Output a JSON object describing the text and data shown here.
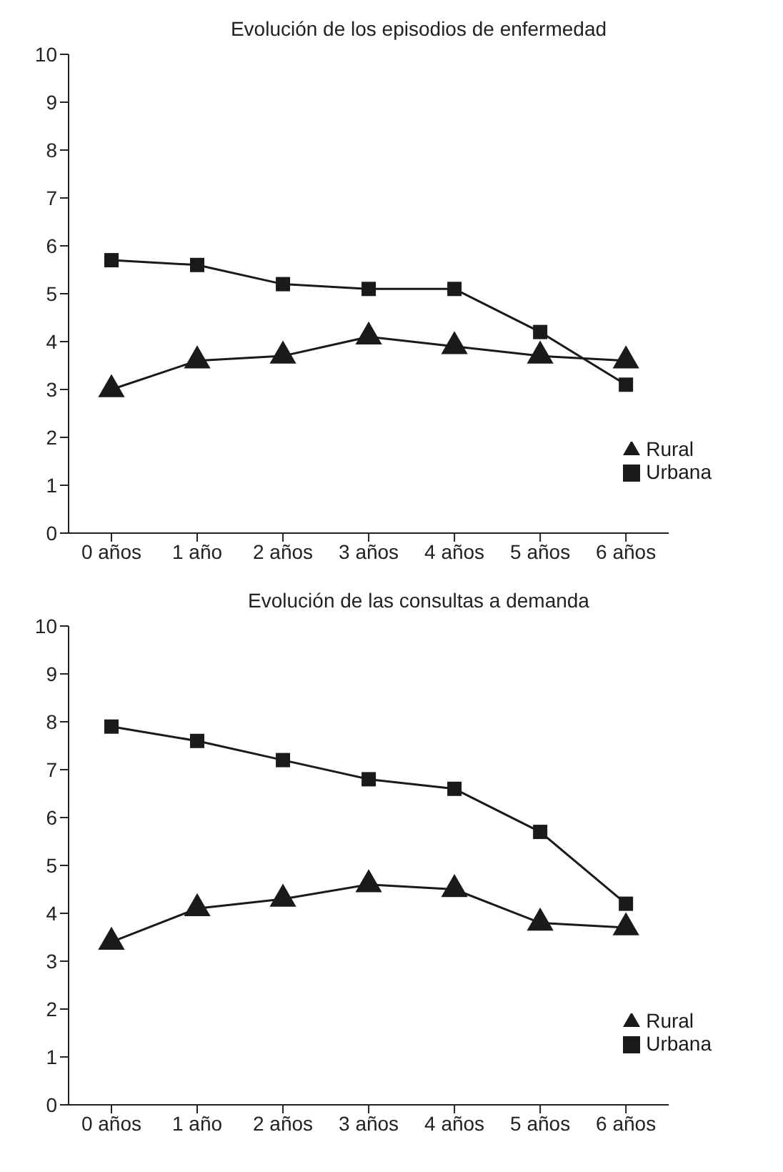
{
  "chart_data": [
    {
      "type": "line",
      "title": "Evolución de los episodios de enfermedad",
      "categories": [
        "0 años",
        "1 año",
        "2 años",
        "3 años",
        "4 años",
        "5 años",
        "6 años"
      ],
      "series": [
        {
          "name": "Urbana",
          "color": "#1a1a1a",
          "marker": "square",
          "values": [
            5.7,
            5.6,
            5.2,
            5.1,
            5.1,
            4.2,
            3.1
          ]
        },
        {
          "name": "Rural",
          "color": "#1a1a1a",
          "marker": "triangle",
          "values": [
            3.0,
            3.6,
            3.7,
            4.1,
            3.9,
            3.7,
            3.6
          ]
        }
      ],
      "ylim": [
        0,
        10
      ],
      "yticks": [
        0,
        1,
        2,
        3,
        4,
        5,
        6,
        7,
        8,
        9,
        10
      ],
      "grid": false,
      "legend": "bottom right",
      "line_style": "solid"
    },
    {
      "type": "line",
      "title": "Evolución de las consultas a demanda",
      "categories": [
        "0 años",
        "1 año",
        "2 años",
        "3 años",
        "4 años",
        "5 años",
        "6 años"
      ],
      "series": [
        {
          "name": "Urbana",
          "color": "#1a1a1a",
          "marker": "square",
          "values": [
            7.9,
            7.6,
            7.2,
            6.8,
            6.6,
            5.7,
            4.2
          ]
        },
        {
          "name": "Rural",
          "color": "#1a1a1a",
          "marker": "triangle",
          "values": [
            3.4,
            4.1,
            4.3,
            4.6,
            4.5,
            3.8,
            3.7
          ]
        }
      ],
      "ylim": [
        0,
        10
      ],
      "yticks": [
        0,
        1,
        2,
        3,
        4,
        5,
        6,
        7,
        8,
        9,
        10
      ],
      "grid": false,
      "legend": "bottom right",
      "line_style": "solid"
    }
  ]
}
